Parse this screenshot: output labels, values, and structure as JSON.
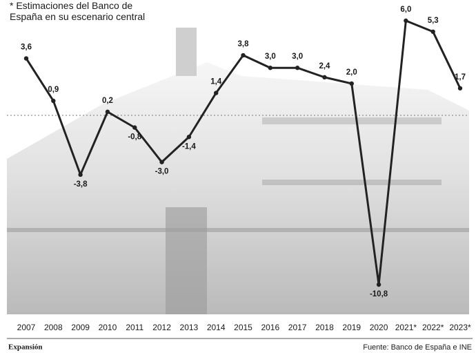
{
  "chart_data": {
    "type": "line",
    "annotation": [
      "* Estimaciones del Banco de",
      "España en su escenario central"
    ],
    "categories": [
      "2007",
      "2008",
      "2009",
      "2010",
      "2011",
      "2012",
      "2013",
      "2014",
      "2015",
      "2016",
      "2017",
      "2018",
      "2019",
      "2020",
      "2021*",
      "2022*",
      "2023*"
    ],
    "values": [
      3.6,
      0.9,
      -3.8,
      0.2,
      -0.8,
      -3.0,
      -1.4,
      1.4,
      3.8,
      3.0,
      3.0,
      2.4,
      2.0,
      -10.8,
      6.0,
      5.3,
      1.7
    ],
    "value_labels": [
      "3,6",
      "0,9",
      "-3,8",
      "0,2",
      "-0,8",
      "-3,0",
      "-1,4",
      "1,4",
      "3,8",
      "3,0",
      "3,0",
      "2,4",
      "2,0",
      "-10,8",
      "6,0",
      "5,3",
      "1,7"
    ],
    "color": "#222222",
    "brand": "Expansión",
    "source": "Fuente: Banco de España e INE"
  }
}
